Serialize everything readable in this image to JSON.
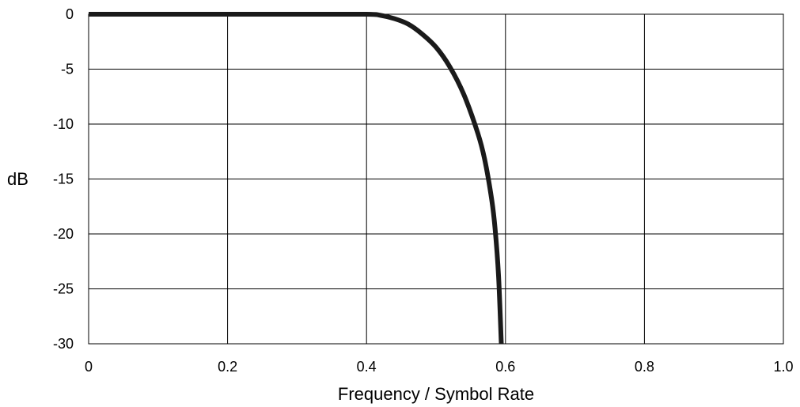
{
  "chart_data": {
    "type": "line",
    "title": "",
    "xlabel": "Frequency / Symbol Rate",
    "ylabel": "dB",
    "xlim": [
      0,
      1.0
    ],
    "ylim": [
      -30,
      0
    ],
    "grid": true,
    "legend": "none",
    "x_ticks": [
      "0",
      "0.2",
      "0.4",
      "0.6",
      "0.8",
      "1.0"
    ],
    "y_ticks": [
      "0",
      "-5",
      "-10",
      "-15",
      "-20",
      "-25",
      "-30"
    ],
    "series": [
      {
        "color": "#1a1a1a",
        "x": [
          0,
          0.1,
          0.2,
          0.3,
          0.4,
          0.42,
          0.44,
          0.46,
          0.48,
          0.5,
          0.52,
          0.54,
          0.56,
          0.57,
          0.58,
          0.585,
          0.59,
          0.594
        ],
        "y": [
          0,
          0,
          0,
          0,
          0,
          -0.1,
          -0.4,
          -0.9,
          -1.8,
          -3.0,
          -4.8,
          -7.3,
          -10.8,
          -13.2,
          -16.8,
          -19.5,
          -23.8,
          -30
        ]
      }
    ]
  }
}
